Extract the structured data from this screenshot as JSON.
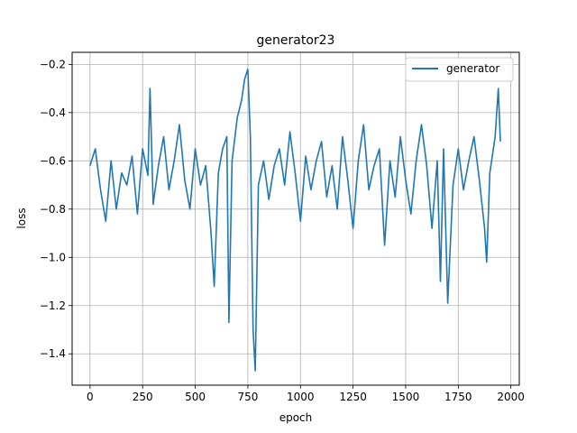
{
  "chart_data": {
    "type": "line",
    "title": "generator23",
    "xlabel": "epoch",
    "ylabel": "loss",
    "xlim": [
      -85,
      2040
    ],
    "ylim": [
      -1.53,
      -0.15
    ],
    "xticks": [
      0,
      250,
      500,
      750,
      1000,
      1250,
      1500,
      1750,
      2000
    ],
    "xtick_labels": [
      "0",
      "250",
      "500",
      "750",
      "1000",
      "1250",
      "1500",
      "1750",
      "2000"
    ],
    "yticks": [
      -1.4,
      -1.2,
      -1.0,
      -0.8,
      -0.6,
      -0.4,
      -0.2
    ],
    "ytick_labels": [
      "−1.4",
      "−1.2",
      "−1.0",
      "−0.8",
      "−0.6",
      "−0.4",
      "−0.2"
    ],
    "grid": true,
    "legend_position": "top-right",
    "series": [
      {
        "name": "generator",
        "color": "#1f77b4",
        "x": [
          0,
          25,
          50,
          75,
          100,
          125,
          150,
          175,
          200,
          225,
          250,
          275,
          285,
          300,
          325,
          350,
          375,
          400,
          425,
          450,
          475,
          500,
          525,
          550,
          575,
          590,
          610,
          630,
          650,
          660,
          675,
          700,
          720,
          735,
          750,
          762,
          775,
          785,
          800,
          825,
          850,
          875,
          900,
          925,
          950,
          975,
          1000,
          1025,
          1050,
          1075,
          1100,
          1125,
          1150,
          1175,
          1200,
          1225,
          1250,
          1275,
          1300,
          1325,
          1350,
          1375,
          1400,
          1425,
          1450,
          1475,
          1500,
          1525,
          1550,
          1575,
          1600,
          1625,
          1650,
          1665,
          1680,
          1700,
          1725,
          1750,
          1775,
          1800,
          1825,
          1850,
          1875,
          1885,
          1900,
          1925,
          1940,
          1950
        ],
        "y": [
          -0.62,
          -0.55,
          -0.72,
          -0.85,
          -0.6,
          -0.8,
          -0.65,
          -0.7,
          -0.58,
          -0.82,
          -0.55,
          -0.66,
          -0.3,
          -0.78,
          -0.62,
          -0.5,
          -0.72,
          -0.6,
          -0.45,
          -0.68,
          -0.8,
          -0.55,
          -0.7,
          -0.62,
          -0.9,
          -1.12,
          -0.65,
          -0.55,
          -0.5,
          -1.27,
          -0.6,
          -0.42,
          -0.35,
          -0.26,
          -0.22,
          -0.5,
          -1.3,
          -1.47,
          -0.7,
          -0.6,
          -0.76,
          -0.62,
          -0.55,
          -0.7,
          -0.48,
          -0.65,
          -0.85,
          -0.58,
          -0.72,
          -0.6,
          -0.52,
          -0.75,
          -0.62,
          -0.8,
          -0.5,
          -0.68,
          -0.88,
          -0.6,
          -0.45,
          -0.72,
          -0.62,
          -0.55,
          -0.95,
          -0.6,
          -0.75,
          -0.5,
          -0.68,
          -0.82,
          -0.6,
          -0.45,
          -0.62,
          -0.88,
          -0.6,
          -1.1,
          -0.55,
          -1.19,
          -0.7,
          -0.55,
          -0.72,
          -0.6,
          -0.5,
          -0.68,
          -0.88,
          -1.02,
          -0.65,
          -0.5,
          -0.3,
          -0.52
        ]
      }
    ]
  }
}
